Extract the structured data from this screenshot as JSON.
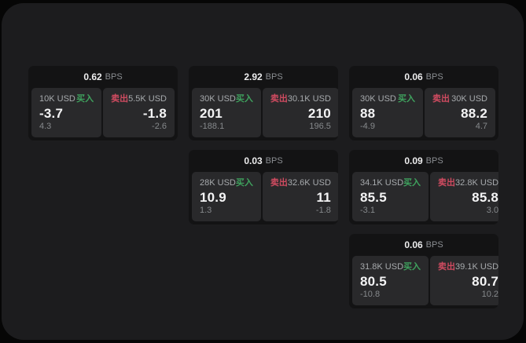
{
  "theme": {
    "outer_bg": "#060606",
    "window_bg": "#1c1c1e",
    "card_bg": "#131314",
    "panel_bg": "#29292b",
    "buy_color": "#3fa25e",
    "sell_color": "#cf4b60"
  },
  "labels": {
    "bps": "BPS",
    "buy": "买入",
    "sell": "卖出"
  },
  "cards": [
    {
      "bps_value": "0.62",
      "buy": {
        "amount": "10K USD",
        "value": "-3.7",
        "delta": "4.3"
      },
      "sell": {
        "amount": "5.5K USD",
        "value": "-1.8",
        "delta": "-2.6"
      }
    },
    {
      "bps_value": "2.92",
      "buy": {
        "amount": "30K USD",
        "value": "201",
        "delta": "-188.1"
      },
      "sell": {
        "amount": "30.1K USD",
        "value": "210",
        "delta": "196.5"
      }
    },
    {
      "bps_value": "0.06",
      "buy": {
        "amount": "30K USD",
        "value": "88",
        "delta": "-4.9"
      },
      "sell": {
        "amount": "30K USD",
        "value": "88.2",
        "delta": "4.7"
      }
    },
    {
      "bps_value": "0.03",
      "buy": {
        "amount": "28K USD",
        "value": "10.9",
        "delta": "1.3"
      },
      "sell": {
        "amount": "32.6K USD",
        "value": "11",
        "delta": "-1.8"
      }
    },
    {
      "bps_value": "0.09",
      "buy": {
        "amount": "34.1K USD",
        "value": "85.5",
        "delta": "-3.1"
      },
      "sell": {
        "amount": "32.8K USD",
        "value": "85.8",
        "delta": "3.0"
      }
    },
    {
      "bps_value": "0.06",
      "buy": {
        "amount": "31.8K USD",
        "value": "80.5",
        "delta": "-10.8"
      },
      "sell": {
        "amount": "39.1K USD",
        "value": "80.7",
        "delta": "10.2"
      }
    }
  ]
}
